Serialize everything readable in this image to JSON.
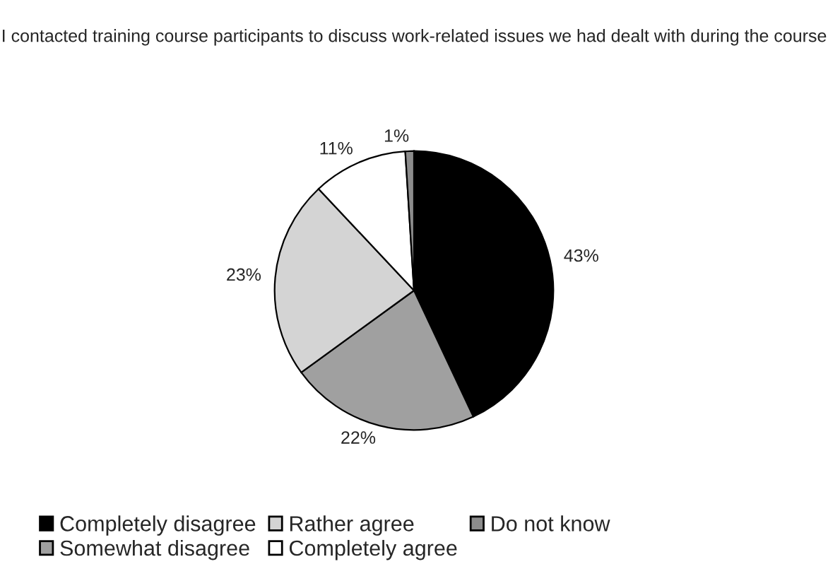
{
  "chart_data": {
    "type": "pie",
    "title": "I contacted training course participants to discuss work-related issues we had dealt with during the course",
    "categories": [
      "Completely disagree",
      "Somewhat disagree",
      "Rather agree",
      "Completely agree",
      "Do not know"
    ],
    "values": [
      43,
      22,
      23,
      11,
      1
    ],
    "colors": [
      "#000000",
      "#a0a0a0",
      "#d4d4d4",
      "#ffffff",
      "#8c8c8c"
    ],
    "value_labels": [
      "43%",
      "22%",
      "23%",
      "11%",
      "1%"
    ],
    "legend": "bottom"
  }
}
